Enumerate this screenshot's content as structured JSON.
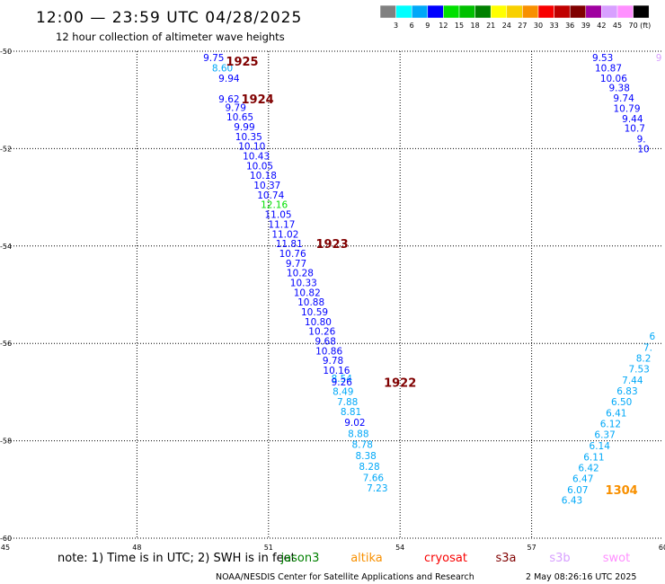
{
  "header": {
    "title": "12:00 — 23:59 UTC 04/28/2025",
    "subtitle": "12 hour collection of altimeter wave heights"
  },
  "legend": {
    "colors": [
      "#808080",
      "#00ffff",
      "#00a8f8",
      "#0000ff",
      "#00e000",
      "#00c000",
      "#008000",
      "#ffff00",
      "#f8d000",
      "#f89000",
      "#f80000",
      "#c00000",
      "#800000",
      "#a000a0",
      "#d8a0ff",
      "#ff90ff",
      "#000000"
    ],
    "labels": [
      "3",
      "6",
      "9",
      "12",
      "15",
      "18",
      "21",
      "24",
      "27",
      "30",
      "33",
      "36",
      "39",
      "42",
      "45",
      "70"
    ],
    "unit": "(ft)"
  },
  "chart_data": {
    "type": "scatter",
    "title": "12:00 — 23:59 UTC 04/28/2025",
    "subtitle": "12 hour collection of altimeter wave heights",
    "xlim": [
      45,
      60
    ],
    "ylim": [
      -60,
      -50
    ],
    "x_ticks": [
      {
        "v": 45,
        "label": "45"
      },
      {
        "v": 48,
        "label": "48"
      },
      {
        "v": 51,
        "label": "51"
      },
      {
        "v": 54,
        "label": "54"
      },
      {
        "v": 57,
        "label": "57"
      },
      {
        "v": 60,
        "label": "60"
      }
    ],
    "y_ticks": [
      {
        "v": -50,
        "label": "-50"
      },
      {
        "v": -52,
        "label": "-52"
      },
      {
        "v": -54,
        "label": "-54"
      },
      {
        "v": -56,
        "label": "-56"
      },
      {
        "v": -58,
        "label": "-58"
      },
      {
        "v": -60,
        "label": "-60"
      }
    ],
    "grid": true,
    "points": [
      {
        "x": 49.75,
        "y": -50.13,
        "text": "9.75",
        "color": "#0000ff"
      },
      {
        "x": 49.95,
        "y": -50.34,
        "text": "8.60",
        "color": "#00a8f8"
      },
      {
        "x": 50.1,
        "y": -50.55,
        "text": "9.94",
        "color": "#0000ff"
      },
      {
        "x": 50.1,
        "y": -50.98,
        "text": "9.62",
        "color": "#0000ff"
      },
      {
        "x": 50.25,
        "y": -51.15,
        "text": "9.79",
        "color": "#0000ff"
      },
      {
        "x": 50.35,
        "y": -51.35,
        "text": "10.65",
        "color": "#0000ff"
      },
      {
        "x": 50.45,
        "y": -51.55,
        "text": "9.99",
        "color": "#0000ff"
      },
      {
        "x": 50.55,
        "y": -51.75,
        "text": "10.35",
        "color": "#0000ff"
      },
      {
        "x": 50.62,
        "y": -51.95,
        "text": "10.10",
        "color": "#0000ff"
      },
      {
        "x": 50.72,
        "y": -52.15,
        "text": "10.43",
        "color": "#0000ff"
      },
      {
        "x": 50.8,
        "y": -52.35,
        "text": "10.05",
        "color": "#0000ff"
      },
      {
        "x": 50.88,
        "y": -52.55,
        "text": "10.18",
        "color": "#0000ff"
      },
      {
        "x": 50.97,
        "y": -52.75,
        "text": "10.37",
        "color": "#0000ff"
      },
      {
        "x": 51.05,
        "y": -52.95,
        "text": "10.74",
        "color": "#0000ff"
      },
      {
        "x": 51.13,
        "y": -53.15,
        "text": "12.16",
        "color": "#00e000"
      },
      {
        "x": 51.22,
        "y": -53.35,
        "text": "11.05",
        "color": "#0000ff"
      },
      {
        "x": 51.3,
        "y": -53.55,
        "text": "11.17",
        "color": "#0000ff"
      },
      {
        "x": 51.38,
        "y": -53.75,
        "text": "11.02",
        "color": "#0000ff"
      },
      {
        "x": 51.47,
        "y": -53.95,
        "text": "11.81",
        "color": "#0000ff"
      },
      {
        "x": 51.55,
        "y": -54.15,
        "text": "10.76",
        "color": "#0000ff"
      },
      {
        "x": 51.63,
        "y": -54.35,
        "text": "9.77",
        "color": "#0000ff"
      },
      {
        "x": 51.72,
        "y": -54.55,
        "text": "10.28",
        "color": "#0000ff"
      },
      {
        "x": 51.8,
        "y": -54.75,
        "text": "10.33",
        "color": "#0000ff"
      },
      {
        "x": 51.88,
        "y": -54.95,
        "text": "10.82",
        "color": "#0000ff"
      },
      {
        "x": 51.97,
        "y": -55.15,
        "text": "10.88",
        "color": "#0000ff"
      },
      {
        "x": 52.05,
        "y": -55.35,
        "text": "10.59",
        "color": "#0000ff"
      },
      {
        "x": 52.13,
        "y": -55.55,
        "text": "10.80",
        "color": "#0000ff"
      },
      {
        "x": 52.22,
        "y": -55.75,
        "text": "10.26",
        "color": "#0000ff"
      },
      {
        "x": 52.3,
        "y": -55.95,
        "text": "9.68",
        "color": "#0000ff"
      },
      {
        "x": 52.38,
        "y": -56.15,
        "text": "10.86",
        "color": "#0000ff"
      },
      {
        "x": 52.47,
        "y": -56.35,
        "text": "9.78",
        "color": "#0000ff"
      },
      {
        "x": 52.55,
        "y": -56.55,
        "text": "10.16",
        "color": "#0000ff"
      },
      {
        "x": 52.67,
        "y": -56.72,
        "text": "8.54",
        "color": "#00a8f8"
      },
      {
        "x": 52.67,
        "y": -56.79,
        "text": "9.26",
        "color": "#0000ff"
      },
      {
        "x": 52.7,
        "y": -56.98,
        "text": "8.49",
        "color": "#00a8f8"
      },
      {
        "x": 52.8,
        "y": -57.2,
        "text": "7.88",
        "color": "#00a8f8"
      },
      {
        "x": 52.88,
        "y": -57.4,
        "text": "8.81",
        "color": "#00a8f8"
      },
      {
        "x": 52.97,
        "y": -57.62,
        "text": "9.02",
        "color": "#0000ff"
      },
      {
        "x": 53.05,
        "y": -57.85,
        "text": "8.88",
        "color": "#00a8f8"
      },
      {
        "x": 53.14,
        "y": -58.07,
        "text": "8.78",
        "color": "#00a8f8"
      },
      {
        "x": 53.22,
        "y": -58.3,
        "text": "8.38",
        "color": "#00a8f8"
      },
      {
        "x": 53.3,
        "y": -58.52,
        "text": "8.28",
        "color": "#00a8f8"
      },
      {
        "x": 53.39,
        "y": -58.75,
        "text": "7.66",
        "color": "#00a8f8"
      },
      {
        "x": 53.48,
        "y": -58.97,
        "text": "7.23",
        "color": "#00a8f8"
      },
      {
        "x": 58.62,
        "y": -50.13,
        "text": "9.53",
        "color": "#0000ff"
      },
      {
        "x": 58.75,
        "y": -50.34,
        "text": "10.87",
        "color": "#0000ff"
      },
      {
        "x": 58.87,
        "y": -50.55,
        "text": "10.06",
        "color": "#0000ff"
      },
      {
        "x": 59.0,
        "y": -50.75,
        "text": "9.38",
        "color": "#0000ff"
      },
      {
        "x": 59.1,
        "y": -50.96,
        "text": "9.74",
        "color": "#0000ff"
      },
      {
        "x": 59.17,
        "y": -51.17,
        "text": "10.79",
        "color": "#0000ff"
      },
      {
        "x": 59.3,
        "y": -51.38,
        "text": "9.44",
        "color": "#0000ff"
      },
      {
        "x": 59.35,
        "y": -51.58,
        "text": "10.7",
        "color": "#0000ff"
      },
      {
        "x": 59.5,
        "y": -51.8,
        "text": "9.",
        "color": "#0000ff"
      },
      {
        "x": 59.55,
        "y": -52.0,
        "text": "10",
        "color": "#0000ff"
      },
      {
        "x": 59.75,
        "y": -55.85,
        "text": "6",
        "color": "#00a8f8"
      },
      {
        "x": 59.65,
        "y": -56.08,
        "text": "7.",
        "color": "#00a8f8"
      },
      {
        "x": 59.55,
        "y": -56.3,
        "text": "8.2",
        "color": "#00a8f8"
      },
      {
        "x": 59.45,
        "y": -56.52,
        "text": "7.53",
        "color": "#00a8f8"
      },
      {
        "x": 59.3,
        "y": -56.75,
        "text": "7.44",
        "color": "#00a8f8"
      },
      {
        "x": 59.18,
        "y": -56.97,
        "text": "6.83",
        "color": "#00a8f8"
      },
      {
        "x": 59.05,
        "y": -57.2,
        "text": "6.50",
        "color": "#00a8f8"
      },
      {
        "x": 58.93,
        "y": -57.43,
        "text": "6.41",
        "color": "#00a8f8"
      },
      {
        "x": 58.8,
        "y": -57.65,
        "text": "6.12",
        "color": "#00a8f8"
      },
      {
        "x": 58.67,
        "y": -57.87,
        "text": "6.37",
        "color": "#00a8f8"
      },
      {
        "x": 58.55,
        "y": -58.1,
        "text": "6.14",
        "color": "#00a8f8"
      },
      {
        "x": 58.42,
        "y": -58.33,
        "text": "6.11",
        "color": "#00a8f8"
      },
      {
        "x": 58.3,
        "y": -58.55,
        "text": "6.42",
        "color": "#00a8f8"
      },
      {
        "x": 58.17,
        "y": -58.77,
        "text": "6.47",
        "color": "#00a8f8"
      },
      {
        "x": 58.05,
        "y": -59.0,
        "text": "6.07",
        "color": "#00a8f8"
      },
      {
        "x": 57.92,
        "y": -59.22,
        "text": "6.43",
        "color": "#00a8f8"
      },
      {
        "x": 59.9,
        "y": -50.13,
        "text": "9",
        "color": "#d8a0ff"
      }
    ],
    "pass_labels": [
      {
        "x": 50.4,
        "y": -50.2,
        "text": "1925"
      },
      {
        "x": 50.75,
        "y": -50.98,
        "text": "1924"
      },
      {
        "x": 52.45,
        "y": -53.95,
        "text": "1923"
      },
      {
        "x": 54.0,
        "y": -56.8,
        "text": "1922"
      },
      {
        "x": 59.05,
        "y": -59.0,
        "text": "1304",
        "color": "#f89000"
      }
    ]
  },
  "footer": {
    "note": "note:  1) Time is in UTC; 2) SWH is in feet",
    "satellites": [
      {
        "name": "jason3",
        "color": "#008000"
      },
      {
        "name": "altika",
        "color": "#f89000"
      },
      {
        "name": "cryosat",
        "color": "#f80000"
      },
      {
        "name": "s3a",
        "color": "#800000"
      },
      {
        "name": "s3b",
        "color": "#d8a0ff"
      },
      {
        "name": "swot",
        "color": "#ff90ff"
      }
    ],
    "credit": "NOAA/NESDIS Center for Satellite Applications and Research",
    "timestamp": "2 May 08:26:16 UTC 2025"
  },
  "colors": {
    "pass_label": "#800000",
    "grid": "#000000"
  }
}
